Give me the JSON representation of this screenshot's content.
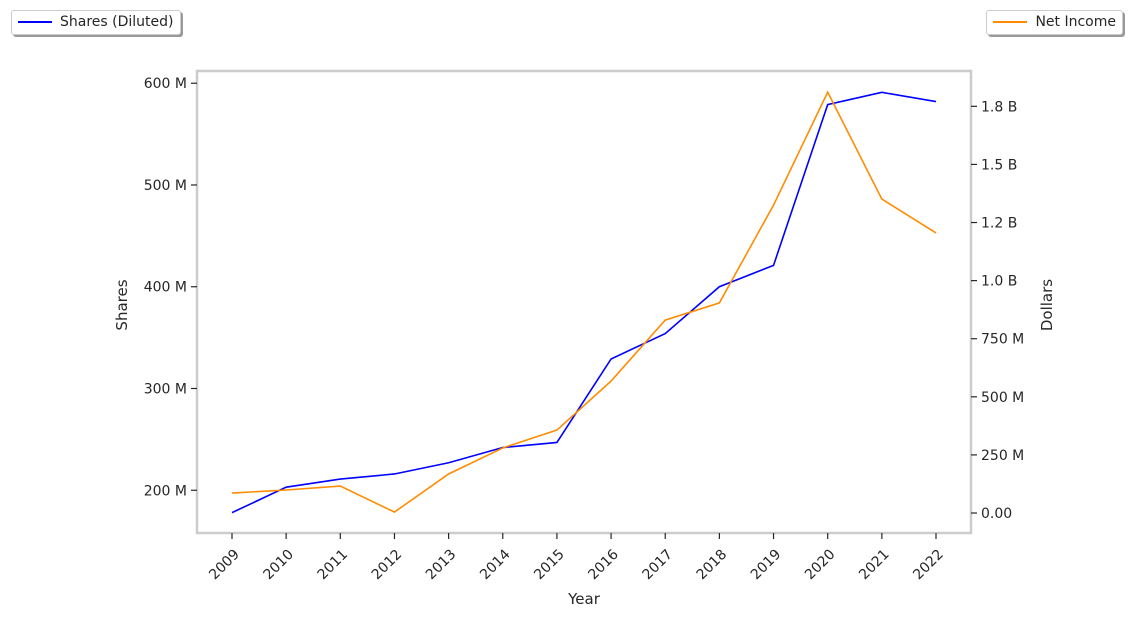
{
  "chart_data": {
    "type": "line",
    "xlabel": "Year",
    "x": [
      "2009",
      "2010",
      "2011",
      "2012",
      "2013",
      "2014",
      "2015",
      "2016",
      "2017",
      "2018",
      "2019",
      "2020",
      "2021",
      "2022"
    ],
    "series": [
      {
        "name": "Shares (Diluted)",
        "axis": "left",
        "color": "#0000ff",
        "values": [
          178,
          203,
          211,
          216,
          227,
          242,
          247,
          329,
          354,
          400,
          421,
          579,
          591,
          582
        ]
      },
      {
        "name": "Net Income",
        "axis": "right",
        "color": "#ff8c00",
        "values": [
          86,
          99,
          116,
          4,
          168,
          280,
          357,
          568,
          830,
          904,
          1325,
          1811,
          1351,
          1205
        ]
      }
    ],
    "left_axis": {
      "label": "Shares",
      "unit": "millions",
      "ylim": [
        158,
        612
      ],
      "ticks": [
        200,
        300,
        400,
        500,
        600
      ],
      "tick_labels": [
        "200 M",
        "300 M",
        "400 M",
        "500 M",
        "600 M"
      ]
    },
    "right_axis": {
      "label": "Dollars",
      "unit": "millions",
      "ylim": [
        -86,
        1902
      ],
      "ticks": [
        0,
        250,
        500,
        750,
        1000,
        1250,
        1500,
        1750
      ],
      "tick_labels": [
        "0.00",
        "250 M",
        "500 M",
        "750 M",
        "1.0 B",
        "1.2 B",
        "1.5 B",
        "1.8 B"
      ]
    },
    "grid": false,
    "legend": [
      "top-left",
      "top-right"
    ]
  }
}
